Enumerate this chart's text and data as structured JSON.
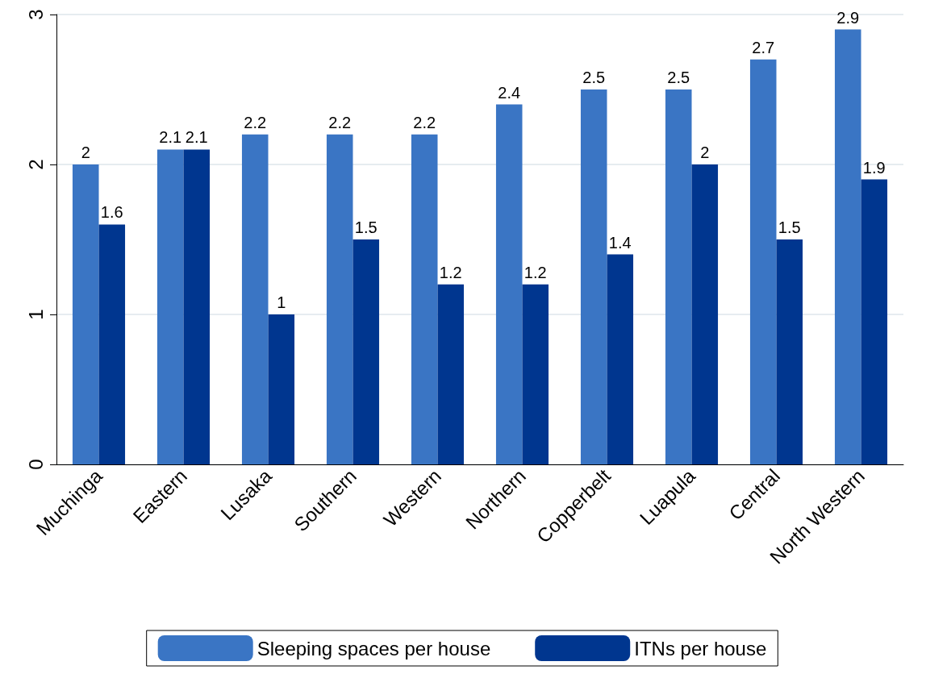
{
  "chart_data": {
    "type": "bar",
    "categories": [
      "Muchinga",
      "Eastern",
      "Lusaka",
      "Southern",
      "Western",
      "Northern",
      "Copperbelt",
      "Luapula",
      "Central",
      "North Western"
    ],
    "series": [
      {
        "name": "Sleeping spaces per house",
        "color": "#3a75c4",
        "values": [
          2,
          2.1,
          2.2,
          2.2,
          2.2,
          2.4,
          2.5,
          2.5,
          2.7,
          2.9
        ]
      },
      {
        "name": "ITNs per house",
        "color": "#00368f",
        "values": [
          1.6,
          2.1,
          1,
          1.5,
          1.2,
          1.2,
          1.4,
          2,
          1.5,
          1.9
        ]
      }
    ],
    "ylim": [
      0,
      3
    ],
    "yticks": [
      0,
      1,
      2,
      3
    ],
    "grid": "y",
    "legend": "bottom",
    "data_labels": true
  }
}
